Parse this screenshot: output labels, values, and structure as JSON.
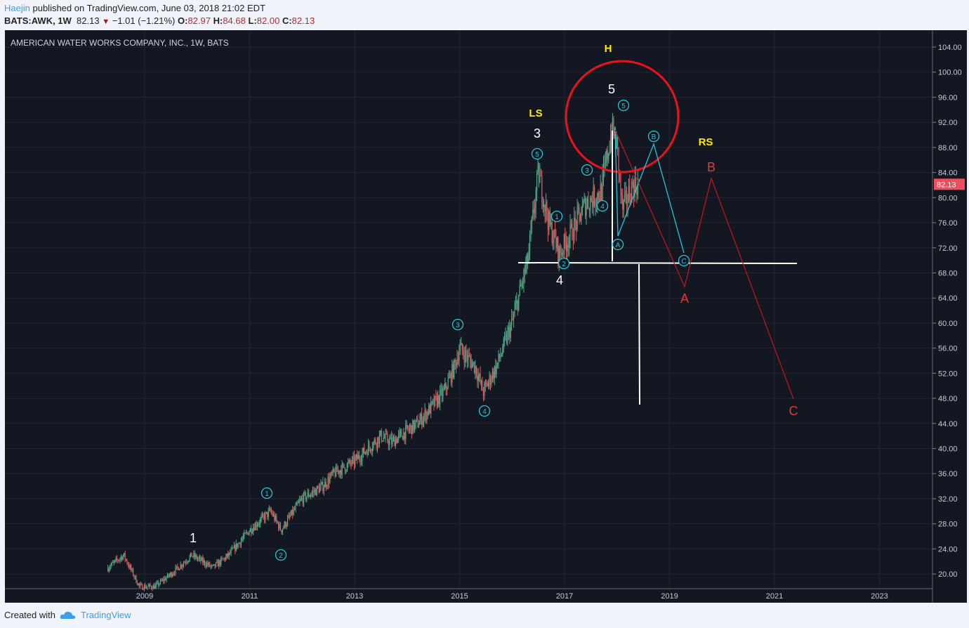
{
  "header": {
    "author": "Haejin",
    "published": "published on TradingView.com, June 03, 2018 21:02 EDT",
    "symbol": "BATS:AWK, 1W",
    "last": "82.13",
    "change": "−1.01 (−1.21%)",
    "open_label": "O:",
    "open": "82.97",
    "high_label": "H:",
    "high": "84.68",
    "low_label": "L:",
    "low": "82.00",
    "close_label": "C:",
    "close": "82.13"
  },
  "footer": {
    "created_with": "Created with",
    "brand": "TradingView"
  },
  "chart_data": {
    "type": "candlestick",
    "title": "AMERICAN WATER WORKS COMPANY, INC., 1W, BATS",
    "ylim": [
      17,
      106
    ],
    "y_ticks": [
      "104.00",
      "100.00",
      "96.00",
      "92.00",
      "88.00",
      "84.00",
      "80.00",
      "76.00",
      "72.00",
      "68.00",
      "64.00",
      "60.00",
      "56.00",
      "52.00",
      "48.00",
      "44.00",
      "40.00",
      "36.00",
      "32.00",
      "28.00",
      "24.00",
      "20.00"
    ],
    "x_ticks": [
      "2009",
      "2011",
      "2013",
      "2015",
      "2017",
      "2019",
      "2021",
      "2023"
    ],
    "last_price_label": "82.13",
    "price_path": [
      [
        2008.3,
        21
      ],
      [
        2008.6,
        23
      ],
      [
        2008.9,
        18
      ],
      [
        2009.2,
        18
      ],
      [
        2009.5,
        20
      ],
      [
        2009.9,
        23
      ],
      [
        2010.3,
        21
      ],
      [
        2010.6,
        23
      ],
      [
        2011.0,
        27
      ],
      [
        2011.4,
        30
      ],
      [
        2011.6,
        27
      ],
      [
        2012.0,
        32
      ],
      [
        2012.4,
        34
      ],
      [
        2012.6,
        36
      ],
      [
        2013.0,
        38
      ],
      [
        2013.5,
        42
      ],
      [
        2013.7,
        41
      ],
      [
        2014.2,
        44
      ],
      [
        2014.7,
        49
      ],
      [
        2014.9,
        53
      ],
      [
        2015.0,
        56
      ],
      [
        2015.3,
        53
      ],
      [
        2015.45,
        49
      ],
      [
        2015.7,
        53
      ],
      [
        2016.0,
        60
      ],
      [
        2016.3,
        70
      ],
      [
        2016.5,
        84
      ],
      [
        2016.7,
        76
      ],
      [
        2016.9,
        71
      ],
      [
        2017.1,
        74
      ],
      [
        2017.4,
        79
      ],
      [
        2017.7,
        81
      ],
      [
        2017.9,
        91
      ],
      [
        2018.0,
        88
      ],
      [
        2018.1,
        78
      ],
      [
        2018.3,
        82
      ],
      [
        2018.42,
        82.13
      ]
    ],
    "annotations": {
      "circled": [
        "1",
        "2",
        "3",
        "4",
        "5",
        "1",
        "2",
        "3",
        "4",
        "5",
        "A",
        "B",
        "C"
      ],
      "white": [
        "1",
        "3",
        "4",
        "5"
      ],
      "yellow": [
        "LS",
        "H",
        "RS"
      ],
      "red": [
        "A",
        "B",
        "C"
      ]
    }
  }
}
